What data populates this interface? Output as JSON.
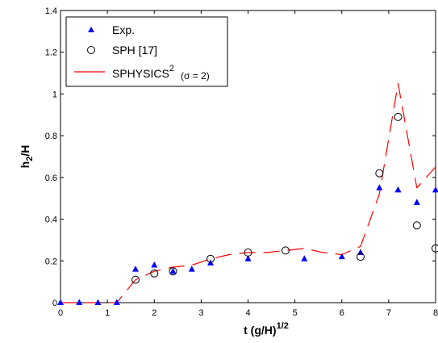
{
  "chart_data": {
    "type": "scatter",
    "title": "",
    "xlabel": {
      "main": "t (g/H)",
      "sup": "1/2"
    },
    "ylabel": {
      "main": "h",
      "sub": "2",
      "rest": "/H"
    },
    "xlim": [
      0,
      8
    ],
    "ylim": [
      0,
      1.4
    ],
    "xticks": [
      0,
      1,
      2,
      3,
      4,
      5,
      6,
      7,
      8
    ],
    "yticks": [
      0,
      0.2,
      0.4,
      0.6,
      0.8,
      1,
      1.2,
      1.4
    ],
    "xtick_labels": [
      "0",
      "1",
      "2",
      "3",
      "4",
      "5",
      "6",
      "7",
      "8"
    ],
    "ytick_labels": [
      "0",
      "0.2",
      "0.4",
      "0.6",
      "0.8",
      "1",
      "1.2",
      "1.4"
    ],
    "grid": false,
    "legend_position": "top-left",
    "series": [
      {
        "name": "Exp.",
        "marker": "triangle",
        "color": "#0000ff",
        "points": [
          [
            0.0,
            0.0
          ],
          [
            0.4,
            0.0
          ],
          [
            0.8,
            0.0
          ],
          [
            1.2,
            0.0
          ],
          [
            1.6,
            0.16
          ],
          [
            2.0,
            0.18
          ],
          [
            2.4,
            0.15
          ],
          [
            2.8,
            0.16
          ],
          [
            3.2,
            0.19
          ],
          [
            4.0,
            0.21
          ],
          [
            5.2,
            0.21
          ],
          [
            6.0,
            0.22
          ],
          [
            6.4,
            0.24
          ],
          [
            6.8,
            0.55
          ],
          [
            7.2,
            0.54
          ],
          [
            7.6,
            0.48
          ],
          [
            8.0,
            0.54
          ]
        ]
      },
      {
        "name": "SPH [17]",
        "marker": "circle",
        "color": "#000000",
        "points": [
          [
            1.6,
            0.11
          ],
          [
            2.0,
            0.14
          ],
          [
            2.4,
            0.15
          ],
          [
            3.2,
            0.21
          ],
          [
            4.0,
            0.24
          ],
          [
            4.8,
            0.25
          ],
          [
            6.4,
            0.22
          ],
          [
            6.8,
            0.62
          ],
          [
            7.2,
            0.89
          ],
          [
            7.6,
            0.37
          ],
          [
            8.0,
            0.26
          ]
        ]
      },
      {
        "name": "SPHYSICS",
        "name_sup": "2",
        "name_note": "(σ = 2)",
        "marker": "dashed-line",
        "color": "#ff0000",
        "points": [
          [
            0.0,
            0.0
          ],
          [
            1.2,
            0.0
          ],
          [
            1.6,
            0.11
          ],
          [
            2.0,
            0.15
          ],
          [
            2.4,
            0.17
          ],
          [
            2.8,
            0.18
          ],
          [
            3.2,
            0.21
          ],
          [
            3.6,
            0.23
          ],
          [
            4.0,
            0.24
          ],
          [
            4.4,
            0.24
          ],
          [
            4.8,
            0.25
          ],
          [
            5.2,
            0.26
          ],
          [
            5.6,
            0.24
          ],
          [
            6.0,
            0.23
          ],
          [
            6.4,
            0.27
          ],
          [
            6.8,
            0.52
          ],
          [
            7.2,
            1.05
          ],
          [
            7.6,
            0.55
          ],
          [
            8.0,
            0.65
          ]
        ]
      }
    ]
  }
}
